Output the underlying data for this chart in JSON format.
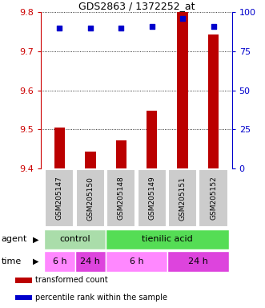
{
  "title": "GDS2863 / 1372252_at",
  "samples": [
    "GSM205147",
    "GSM205150",
    "GSM205148",
    "GSM205149",
    "GSM205151",
    "GSM205152"
  ],
  "bar_values": [
    9.505,
    9.443,
    9.472,
    9.548,
    9.8,
    9.743
  ],
  "percentile_values": [
    90,
    90,
    90,
    91,
    96,
    91
  ],
  "ylim_left": [
    9.4,
    9.8
  ],
  "ylim_right": [
    0,
    100
  ],
  "yticks_left": [
    9.4,
    9.5,
    9.6,
    9.7,
    9.8
  ],
  "yticks_right": [
    0,
    25,
    50,
    75,
    100
  ],
  "bar_color": "#bb0000",
  "dot_color": "#0000cc",
  "bar_bottom": 9.4,
  "bar_width": 0.35,
  "agent_control_color": "#aaddaa",
  "agent_tienilic_color": "#55dd55",
  "time_color_6h": "#ff88ff",
  "time_color_24h": "#dd44dd",
  "xlabel_agent": "agent",
  "xlabel_time": "time",
  "tick_color_left": "#cc0000",
  "tick_color_right": "#0000cc",
  "legend_items": [
    {
      "color": "#bb0000",
      "label": "transformed count"
    },
    {
      "color": "#0000cc",
      "label": "percentile rank within the sample"
    }
  ]
}
